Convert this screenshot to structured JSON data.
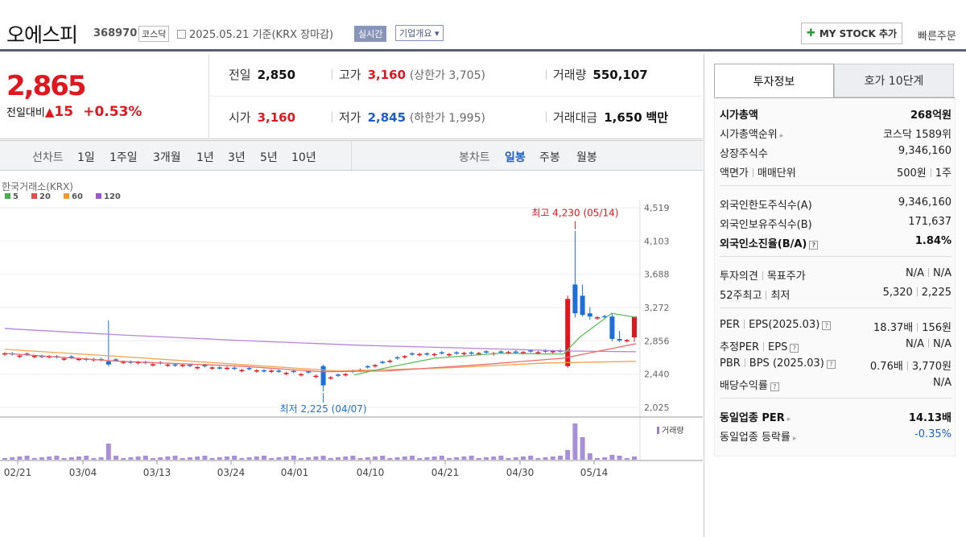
{
  "header": {
    "name": "오에스피",
    "code": "368970",
    "market": "코스닥",
    "date_text": "2025.05.21 기준(KRX 장마감)",
    "realtime_label": "실시간",
    "overview_label": "기업개요 ▾",
    "mystock_label": "MY STOCK 추가",
    "quick_order_label": "빠른주문"
  },
  "summary": {
    "price": "2,865",
    "change_label": "전일대비",
    "change_value": "15",
    "change_rate": "+0.53%",
    "prev_label": "전일",
    "prev": "2,850",
    "high_label": "고가",
    "high": "3,160",
    "upper_limit": "(상한가 3,705)",
    "volume_label": "거래량",
    "volume": "550,107",
    "open_label": "시가",
    "open": "3,160",
    "low_label": "저가",
    "low": "2,845",
    "lower_limit": "(하한가 1,995)",
    "amount_label": "거래대금",
    "amount": "1,650",
    "amount_unit": "백만"
  },
  "periods": {
    "line_label": "선차트",
    "line_items": [
      "1일",
      "1주일",
      "3개월",
      "1년",
      "3년",
      "5년",
      "10년"
    ],
    "candle_label": "봉차트",
    "candle_items": [
      "일봉",
      "주봉",
      "월봉"
    ]
  },
  "chart_data": {
    "type": "candlestick",
    "source_label": "한국거래소(KRX)",
    "ma_legend": [
      {
        "name": "5",
        "color": "#47b04a"
      },
      {
        "name": "20",
        "color": "#e84c4c"
      },
      {
        "name": "60",
        "color": "#f39a2c"
      },
      {
        "name": "120",
        "color": "#9b59c9"
      }
    ],
    "y_ticks": [
      "4,519",
      "4,103",
      "3,688",
      "3,272",
      "2,856",
      "2,440",
      "2,025"
    ],
    "ylim": [
      2025,
      4519
    ],
    "x_ticks": [
      "02/21",
      "03/04",
      "03/13",
      "03/24",
      "04/01",
      "04/10",
      "04/21",
      "04/30",
      "05/14"
    ],
    "max_annotation": "최고 4,230 (05/14)",
    "min_annotation": "최저 2,225 (04/07)",
    "volume_label": "거래량",
    "colors": {
      "up": "#e0171f",
      "down": "#1e6fd9"
    }
  },
  "info": {
    "tab_active": "투자정보",
    "tab_other": "호가 10단계",
    "rows": [
      {
        "l": "시가총액",
        "r": "268억원",
        "bold": true
      },
      {
        "l": "시가총액순위",
        "r": "코스닥 1589위",
        "arrow": true
      },
      {
        "l": "상장주식수",
        "r": "9,346,160"
      },
      {
        "l": "액면가",
        "l2": "매매단위",
        "r": "500원",
        "r2": "1주"
      },
      {
        "l": "외국인한도주식수(A)",
        "r": "9,346,160"
      },
      {
        "l": "외국인보유주식수(B)",
        "r": "171,637"
      },
      {
        "l": "외국인소진율(B/A)",
        "r": "1.84%",
        "bold": true,
        "qm": true
      },
      {
        "l": "투자의견",
        "l2": "목표주가",
        "r": "N/A",
        "r2": "N/A"
      },
      {
        "l": "52주최고",
        "l2": "최저",
        "r": "5,320",
        "r2": "2,225"
      },
      {
        "l": "PER",
        "l2": "EPS(2025.03)",
        "r": "18.37배",
        "r2": "156원",
        "qm": true
      },
      {
        "l": "추정PER",
        "l2": "EPS",
        "r": "N/A",
        "r2": "N/A",
        "qm": true
      },
      {
        "l": "PBR",
        "l2": "BPS (2025.03)",
        "r": "0.76배",
        "r2": "3,770원",
        "qm": true
      },
      {
        "l": "배당수익률",
        "r": "N/A",
        "qm": true
      },
      {
        "l": "동일업종 PER",
        "r": "14.13배",
        "bold": true,
        "arrow": true
      },
      {
        "l": "동일업종 등락률",
        "r": "-0.35%",
        "neg": true,
        "arrow": true
      }
    ]
  }
}
